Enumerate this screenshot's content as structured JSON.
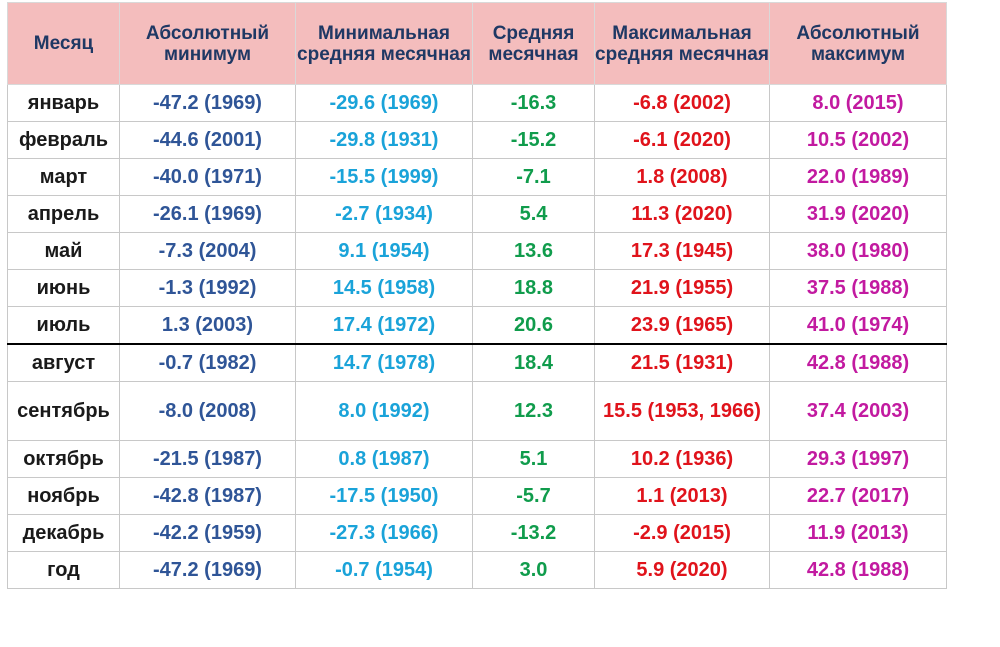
{
  "table": {
    "headers": [
      "Месяц",
      "Абсолютный минимум",
      "Минимальная средняя месячная",
      "Средняя месячная",
      "Максимальная средняя месячная",
      "Абсолютный максимум"
    ],
    "rows": [
      [
        "январь",
        "-47.2 (1969)",
        "-29.6 (1969)",
        "-16.3",
        "-6.8 (2002)",
        "8.0 (2015)"
      ],
      [
        "февраль",
        "-44.6 (2001)",
        "-29.8 (1931)",
        "-15.2",
        "-6.1 (2020)",
        "10.5 (2002)"
      ],
      [
        "март",
        "-40.0 (1971)",
        "-15.5 (1999)",
        "-7.1",
        "1.8 (2008)",
        "22.0 (1989)"
      ],
      [
        "апрель",
        "-26.1 (1969)",
        "-2.7 (1934)",
        "5.4",
        "11.3 (2020)",
        "31.9 (2020)"
      ],
      [
        "май",
        "-7.3 (2004)",
        "9.1 (1954)",
        "13.6",
        "17.3 (1945)",
        "38.0 (1980)"
      ],
      [
        "июнь",
        "-1.3 (1992)",
        "14.5 (1958)",
        "18.8",
        "21.9 (1955)",
        "37.5 (1988)"
      ],
      [
        "июль",
        "1.3 (2003)",
        "17.4 (1972)",
        "20.6",
        "23.9 (1965)",
        "41.0 (1974)"
      ],
      [
        "август",
        "-0.7 (1982)",
        "14.7 (1978)",
        "18.4",
        "21.5 (1931)",
        "42.8 (1988)"
      ],
      [
        "сентябрь",
        "-8.0 (2008)",
        "8.0 (1992)",
        "12.3",
        "15.5 (1953, 1966)",
        "37.4 (2003)"
      ],
      [
        "октябрь",
        "-21.5 (1987)",
        "0.8 (1987)",
        "5.1",
        "10.2 (1936)",
        "29.3 (1997)"
      ],
      [
        "ноябрь",
        "-42.8 (1987)",
        "-17.5 (1950)",
        "-5.7",
        "1.1 (2013)",
        "22.7 (2017)"
      ],
      [
        "декабрь",
        "-42.2 (1959)",
        "-27.3 (1966)",
        "-13.2",
        "-2.9 (2015)",
        "11.9 (2013)"
      ],
      [
        "год",
        "-47.2 (1969)",
        "-0.7 (1954)",
        "3.0",
        "5.9 (2020)",
        "42.8 (1988)"
      ]
    ]
  },
  "colors": {
    "header_bg": "#f4bdbd",
    "header_text": "#1f3864",
    "absolute_min": "#2f5597",
    "min_avg": "#1aa3d9",
    "avg": "#109c4c",
    "max_avg": "#e0131b",
    "absolute_max": "#c21aa0"
  }
}
